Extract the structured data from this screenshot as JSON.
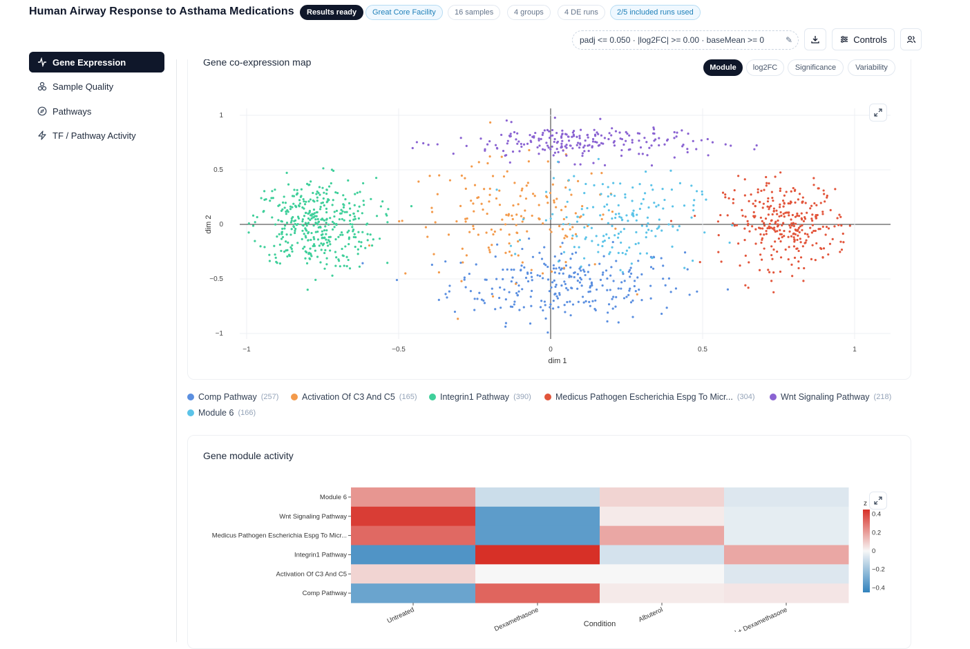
{
  "header": {
    "title": "Human Airway Response to Asthama Medications",
    "status": "Results ready",
    "facility": "Great Core Facility",
    "samples": "16 samples",
    "groups": "4 groups",
    "de_runs": "4 DE runs",
    "runs_used": "2/5 included runs used",
    "filter": "padj <= 0.050 · |log2FC| >= 0.00 · baseMean >= 0",
    "controls_label": "Controls"
  },
  "sidebar": {
    "items": [
      {
        "label": "Gene Expression",
        "icon": "activity-icon",
        "active": true
      },
      {
        "label": "Sample Quality",
        "icon": "molecule-icon"
      },
      {
        "label": "Pathways",
        "icon": "compass-icon"
      },
      {
        "label": "TF / Pathway Activity",
        "icon": "bolt-icon"
      }
    ]
  },
  "coexpression": {
    "title": "Gene co-expression map",
    "color_modes": [
      "Module",
      "log2FC",
      "Significance",
      "Variability"
    ],
    "active_mode": "Module"
  },
  "chart_data": [
    {
      "type": "scatter",
      "xlabel": "dim 1",
      "ylabel": "dim 2",
      "xlim": [
        -1,
        1
      ],
      "ylim": [
        -1,
        1
      ],
      "xticks": [
        "−1",
        "−0.5",
        "0",
        "0.5",
        "1"
      ],
      "yticks": [
        "−1",
        "−0.5",
        "0",
        "0.5",
        "1"
      ],
      "grid": true,
      "series": [
        {
          "name": "Comp Pathway",
          "count": 257,
          "color": "#5b8fe0",
          "center": [
            0.05,
            -0.55
          ],
          "spread": [
            0.32,
            0.28
          ]
        },
        {
          "name": "Activation Of C3 And C5",
          "count": 165,
          "color": "#f39a4b",
          "center": [
            -0.12,
            0.05
          ],
          "spread": [
            0.3,
            0.45
          ]
        },
        {
          "name": "Integrin1 Pathway",
          "count": 390,
          "color": "#3fcf9a",
          "center": [
            -0.78,
            0.0
          ],
          "spread": [
            0.17,
            0.35
          ]
        },
        {
          "name": "Medicus Pathogen Escherichia Espg To Micr...",
          "count": 304,
          "color": "#e2553b",
          "center": [
            0.78,
            0.0
          ],
          "spread": [
            0.17,
            0.33
          ]
        },
        {
          "name": "Wnt Signaling Pathway",
          "count": 218,
          "color": "#8a63d2",
          "center": [
            0.1,
            0.75
          ],
          "spread": [
            0.35,
            0.14
          ]
        },
        {
          "name": "Module 6",
          "count": 166,
          "color": "#5bc3e8",
          "center": [
            0.22,
            0.05
          ],
          "spread": [
            0.22,
            0.35
          ]
        }
      ]
    },
    {
      "type": "heatmap",
      "title": "Gene module activity",
      "xlabel": "Condition",
      "colorbar_title": "z",
      "colorbar_ticks": [
        "0.4",
        "0.2",
        "0",
        "−0.2",
        "−0.4"
      ],
      "categories": [
        "Untreated",
        "Dexamethasone",
        "Albuterol",
        "Albuterol + Dexamethasone"
      ],
      "rows": [
        "Module 6",
        "Wnt Signaling Pathway",
        "Medicus Pathogen Escherichia Espg To Micr...",
        "Integrin1 Pathway",
        "Activation Of C3 And C5",
        "Comp Pathway"
      ],
      "values": [
        [
          0.22,
          -0.1,
          0.08,
          -0.06
        ],
        [
          0.42,
          -0.35,
          0.03,
          -0.04
        ],
        [
          0.32,
          -0.35,
          0.18,
          -0.04
        ],
        [
          -0.38,
          0.45,
          -0.08,
          0.18
        ],
        [
          0.08,
          0.0,
          0.0,
          -0.06
        ],
        [
          -0.32,
          0.33,
          0.03,
          0.04
        ]
      ],
      "zlim": [
        -0.45,
        0.45
      ]
    }
  ],
  "heatmap_card": {
    "title": "Gene module activity"
  }
}
